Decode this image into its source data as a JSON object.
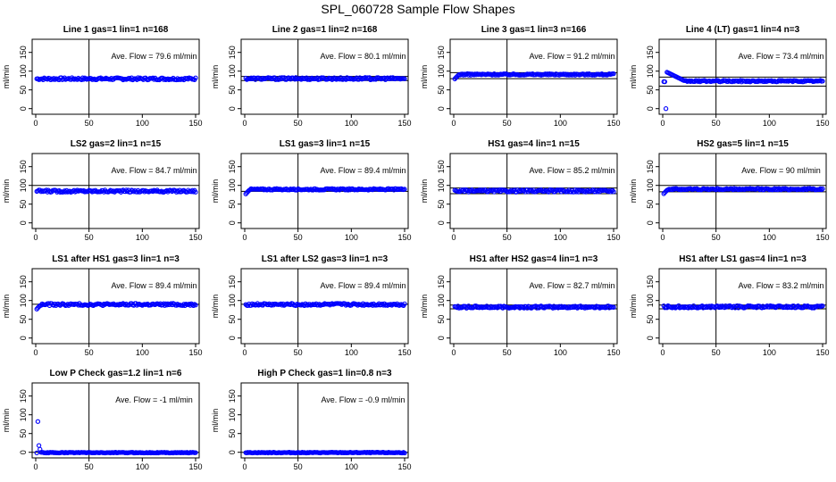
{
  "figure_title": "SPL_060728  Sample Flow Shapes",
  "chart_data": [
    {
      "type": "scatter",
      "title": "Line 1 gas=1 lin=1 n=168",
      "ylabel": "ml/min",
      "annotation": "Ave. Flow =  79.6  ml/min",
      "avg": 79.6,
      "xlim": [
        0,
        150
      ],
      "ylim": [
        -15,
        185
      ],
      "xticks": [
        0,
        50,
        100,
        150
      ],
      "yticks": [
        0,
        50,
        100,
        150
      ],
      "vline": 50,
      "hlines": [],
      "point_color": "#0000ff",
      "pattern": "flat",
      "noise": 3,
      "x": [
        1,
        150
      ]
    },
    {
      "type": "scatter",
      "title": "Line 2 gas=1 lin=2 n=168",
      "ylabel": "ml/min",
      "annotation": "Ave. Flow =  80.1  ml/min",
      "avg": 80.1,
      "xlim": [
        0,
        150
      ],
      "ylim": [
        -15,
        185
      ],
      "xticks": [
        0,
        50,
        100,
        150
      ],
      "yticks": [
        0,
        50,
        100,
        150
      ],
      "vline": 50,
      "hlines": [
        86,
        75
      ],
      "point_color": "#0000ff",
      "pattern": "flat",
      "noise": 3,
      "x": [
        1,
        150
      ]
    },
    {
      "type": "scatter",
      "title": "Line 3 gas=1 lin=3 n=166",
      "ylabel": "ml/min",
      "annotation": "Ave. Flow =  91.2  ml/min",
      "avg": 91.2,
      "xlim": [
        0,
        150
      ],
      "ylim": [
        -15,
        185
      ],
      "xticks": [
        0,
        50,
        100,
        150
      ],
      "yticks": [
        0,
        50,
        100,
        150
      ],
      "vline": 50,
      "hlines": [
        96,
        80
      ],
      "point_color": "#0000ff",
      "pattern": "rise",
      "noise": 2,
      "x": [
        1,
        150
      ]
    },
    {
      "type": "scatter",
      "title": "Line 4 (LT) gas=1 lin=4 n=3",
      "ylabel": "ml/min",
      "annotation": "Ave. Flow =  73.4  ml/min",
      "avg": 73.4,
      "xlim": [
        0,
        150
      ],
      "ylim": [
        -15,
        185
      ],
      "xticks": [
        0,
        50,
        100,
        150
      ],
      "yticks": [
        0,
        50,
        100,
        150
      ],
      "vline": 50,
      "hlines": [
        84,
        60
      ],
      "point_color": "#0000ff",
      "pattern": "spike",
      "noise": 2,
      "x": [
        1,
        150
      ]
    },
    {
      "type": "scatter",
      "title": "LS2 gas=2 lin=1 n=15",
      "ylabel": "ml/min",
      "annotation": "Ave. Flow =  84.7  ml/min",
      "avg": 84.7,
      "xlim": [
        0,
        150
      ],
      "ylim": [
        -15,
        185
      ],
      "xticks": [
        0,
        50,
        100,
        150
      ],
      "yticks": [
        0,
        50,
        100,
        150
      ],
      "vline": 50,
      "hlines": [
        100
      ],
      "point_color": "#0000ff",
      "pattern": "flat",
      "noise": 3,
      "x": [
        1,
        150
      ]
    },
    {
      "type": "scatter",
      "title": "LS1 gas=3 lin=1 n=15",
      "ylabel": "ml/min",
      "annotation": "Ave. Flow =  89.4  ml/min",
      "avg": 89.4,
      "xlim": [
        0,
        150
      ],
      "ylim": [
        -15,
        185
      ],
      "xticks": [
        0,
        50,
        100,
        150
      ],
      "yticks": [
        0,
        50,
        100,
        150
      ],
      "vline": 50,
      "hlines": [
        84
      ],
      "point_color": "#0000ff",
      "pattern": "rise",
      "noise": 2,
      "x": [
        1,
        150
      ]
    },
    {
      "type": "scatter",
      "title": "HS1 gas=4 lin=1 n=15",
      "ylabel": "ml/min",
      "annotation": "Ave. Flow =  85.2  ml/min",
      "avg": 85.2,
      "xlim": [
        0,
        150
      ],
      "ylim": [
        -15,
        185
      ],
      "xticks": [
        0,
        50,
        100,
        150
      ],
      "yticks": [
        0,
        50,
        100,
        150
      ],
      "vline": 50,
      "hlines": [
        93,
        78
      ],
      "point_color": "#0000ff",
      "pattern": "flat",
      "noise": 3,
      "x": [
        1,
        150
      ]
    },
    {
      "type": "scatter",
      "title": "HS2 gas=5 lin=1 n=15",
      "ylabel": "ml/min",
      "annotation": "Ave. Flow =  90  ml/min",
      "avg": 90,
      "xlim": [
        0,
        150
      ],
      "ylim": [
        -15,
        185
      ],
      "xticks": [
        0,
        50,
        100,
        150
      ],
      "yticks": [
        0,
        50,
        100,
        150
      ],
      "vline": 50,
      "hlines": [
        100,
        83
      ],
      "point_color": "#0000ff",
      "pattern": "rise",
      "noise": 2,
      "x": [
        1,
        150
      ]
    },
    {
      "type": "scatter",
      "title": "LS1 after HS1 gas=3 lin=1 n=3",
      "ylabel": "ml/min",
      "annotation": "Ave. Flow =  89.4  ml/min",
      "avg": 89.4,
      "xlim": [
        0,
        150
      ],
      "ylim": [
        -15,
        185
      ],
      "xticks": [
        0,
        50,
        100,
        150
      ],
      "yticks": [
        0,
        50,
        100,
        150
      ],
      "vline": 50,
      "hlines": [
        90
      ],
      "point_color": "#0000ff",
      "pattern": "rise",
      "noise": 3,
      "x": [
        1,
        150
      ]
    },
    {
      "type": "scatter",
      "title": "LS1 after LS2 gas=3 lin=1 n=3",
      "ylabel": "ml/min",
      "annotation": "Ave. Flow =  89.4  ml/min",
      "avg": 89.4,
      "xlim": [
        0,
        150
      ],
      "ylim": [
        -15,
        185
      ],
      "xticks": [
        0,
        50,
        100,
        150
      ],
      "yticks": [
        0,
        50,
        100,
        150
      ],
      "vline": 50,
      "hlines": [
        90
      ],
      "point_color": "#0000ff",
      "pattern": "flat",
      "noise": 3,
      "x": [
        1,
        150
      ]
    },
    {
      "type": "scatter",
      "title": "HS1 after HS2 gas=4 lin=1 n=3",
      "ylabel": "ml/min",
      "annotation": "Ave. Flow =  82.7  ml/min",
      "avg": 82.7,
      "xlim": [
        0,
        150
      ],
      "ylim": [
        -15,
        185
      ],
      "xticks": [
        0,
        50,
        100,
        150
      ],
      "yticks": [
        0,
        50,
        100,
        150
      ],
      "vline": 50,
      "hlines": [
        88,
        78
      ],
      "point_color": "#0000ff",
      "pattern": "flat",
      "noise": 3,
      "x": [
        1,
        150
      ]
    },
    {
      "type": "scatter",
      "title": "HS1 after LS1 gas=4 lin=1 n=3",
      "ylabel": "ml/min",
      "annotation": "Ave. Flow =  83.2  ml/min",
      "avg": 83.2,
      "xlim": [
        0,
        150
      ],
      "ylim": [
        -15,
        185
      ],
      "xticks": [
        0,
        50,
        100,
        150
      ],
      "yticks": [
        0,
        50,
        100,
        150
      ],
      "vline": 50,
      "hlines": [
        88,
        78
      ],
      "point_color": "#0000ff",
      "pattern": "flat",
      "noise": 3,
      "x": [
        1,
        150
      ]
    },
    {
      "type": "scatter",
      "title": "Low P Check gas=1.2 lin=1 n=6",
      "ylabel": "ml/min",
      "annotation": "Ave. Flow =  -1  ml/min",
      "avg": -1,
      "xlim": [
        0,
        150
      ],
      "ylim": [
        -15,
        185
      ],
      "xticks": [
        0,
        50,
        100,
        150
      ],
      "yticks": [
        0,
        50,
        100,
        150
      ],
      "vline": 50,
      "hlines": [
        0
      ],
      "point_color": "#0000ff",
      "pattern": "decay",
      "noise": 1,
      "x": [
        1,
        150
      ]
    },
    {
      "type": "scatter",
      "title": "High P Check gas=1 lin=0.8 n=3",
      "ylabel": "ml/min",
      "annotation": "Ave. Flow =  -0.9  ml/min",
      "avg": -0.9,
      "xlim": [
        0,
        150
      ],
      "ylim": [
        -15,
        185
      ],
      "xticks": [
        0,
        50,
        100,
        150
      ],
      "yticks": [
        0,
        50,
        100,
        150
      ],
      "vline": 50,
      "hlines": [
        0
      ],
      "point_color": "#0000ff",
      "pattern": "flat",
      "noise": 1,
      "x": [
        1,
        150
      ]
    }
  ]
}
